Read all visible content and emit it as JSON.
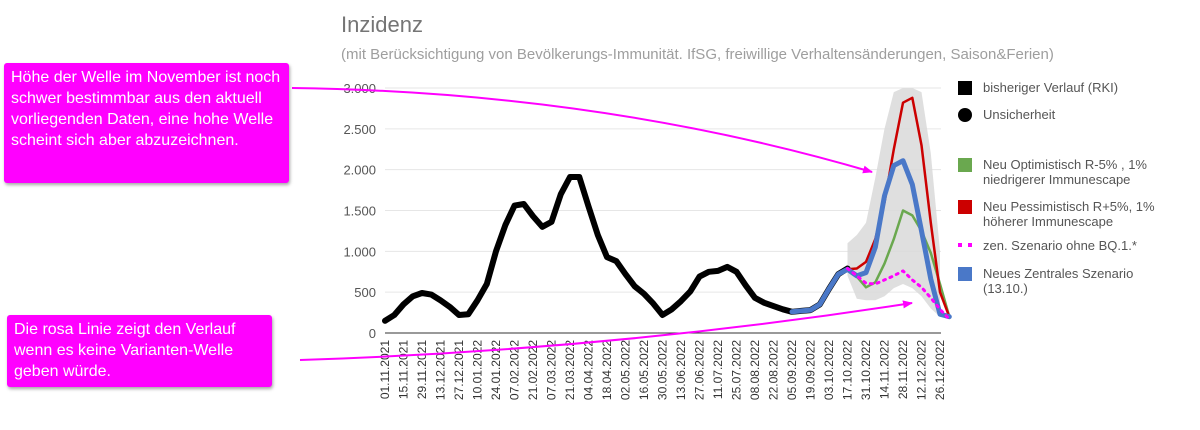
{
  "title": "Inzidenz",
  "subtitle": "(mit Berücksichtigung von Bevölkerungs-Immunität. IfSG, freiwillige Verhaltensänderungen, Saison&Ferien)",
  "callouts": {
    "top": "Höhe der Welle im November ist noch schwer bestimmbar aus den aktuell vorliegenden Daten, eine hohe Welle scheint sich aber abzuzeichnen.",
    "bottom": "Die rosa Linie zeigt den Verlauf wenn es keine Varianten-Welle geben würde."
  },
  "colors": {
    "callout": "#ff00ff",
    "historical": "#000000",
    "optimistic": "#6aa84f",
    "pessimistic": "#cc0000",
    "no_bq1": "#ff00ff",
    "central": "#4a78c8",
    "uncertainty": "#d9d9d9",
    "grid": "#e6e6e6"
  },
  "legend": [
    {
      "label": "bisheriger Verlauf (RKI)",
      "symbol": "square",
      "color": "#000000"
    },
    {
      "label": "Unsicherheit",
      "symbol": "circle",
      "color": "#000000"
    },
    {
      "label": "Neu Optimistisch R-5% , 1% niedrigerer Immunescape",
      "symbol": "square",
      "color": "#6aa84f"
    },
    {
      "label": "Neu Pessimistisch R+5%, 1% höherer Immunescape",
      "symbol": "square",
      "color": "#cc0000"
    },
    {
      "label": "zen. Szenario ohne BQ.1.*",
      "symbol": "dots",
      "color": "#ff00ff"
    },
    {
      "label": "Neues Zentrales Szenario (13.10.)",
      "symbol": "square",
      "color": "#4a78c8"
    }
  ],
  "chart_data": {
    "type": "line",
    "title": "Inzidenz",
    "subtitle": "(mit Berücksichtigung von Bevölkerungs-Immunität. IfSG, freiwillige Verhaltensänderungen, Saison&Ferien)",
    "ylim": [
      0,
      3000
    ],
    "yticks": [
      0,
      500,
      1000,
      1500,
      2000,
      2500,
      3000
    ],
    "ytick_labels": [
      "0",
      "500",
      "1.000",
      "1.500",
      "2.000",
      "2.500",
      "3.000"
    ],
    "grid": true,
    "legend_position": "right",
    "x_tick_labels": [
      "01.11.2021",
      "15.11.2021",
      "29.11.2021",
      "13.12.2021",
      "27.12.2021",
      "10.01.2022",
      "24.01.2022",
      "07.02.2022",
      "21.02.2022",
      "07.03.2022",
      "21.03.2022",
      "04.04.2022",
      "18.04.2022",
      "02.05.2022",
      "16.05.2022",
      "30.05.2022",
      "13.06.2022",
      "27.06.2022",
      "11.07.2022",
      "25.07.2022",
      "08.08.2022",
      "22.08.2022",
      "05.09.2022",
      "19.09.2022",
      "03.10.2022",
      "17.10.2022",
      "31.10.2022",
      "14.11.2022",
      "28.11.2022",
      "12.12.2022",
      "26.12.2022"
    ],
    "series": [
      {
        "name": "bisheriger Verlauf (RKI)",
        "color": "#000000",
        "style": "solid",
        "points": [
          [
            "01.11.2021",
            150
          ],
          [
            "08.11.2021",
            220
          ],
          [
            "15.11.2021",
            350
          ],
          [
            "22.11.2021",
            450
          ],
          [
            "29.11.2021",
            490
          ],
          [
            "06.12.2021",
            470
          ],
          [
            "13.12.2021",
            400
          ],
          [
            "20.12.2021",
            320
          ],
          [
            "27.12.2021",
            220
          ],
          [
            "03.01.2022",
            230
          ],
          [
            "10.01.2022",
            400
          ],
          [
            "17.01.2022",
            600
          ],
          [
            "24.01.2022",
            1000
          ],
          [
            "31.01.2022",
            1320
          ],
          [
            "07.02.2022",
            1560
          ],
          [
            "14.02.2022",
            1580
          ],
          [
            "21.02.2022",
            1430
          ],
          [
            "28.02.2022",
            1300
          ],
          [
            "07.03.2022",
            1360
          ],
          [
            "14.03.2022",
            1700
          ],
          [
            "21.03.2022",
            1910
          ],
          [
            "28.03.2022",
            1910
          ],
          [
            "04.04.2022",
            1550
          ],
          [
            "11.04.2022",
            1200
          ],
          [
            "18.04.2022",
            930
          ],
          [
            "25.04.2022",
            880
          ],
          [
            "02.05.2022",
            720
          ],
          [
            "09.05.2022",
            570
          ],
          [
            "16.05.2022",
            480
          ],
          [
            "23.05.2022",
            360
          ],
          [
            "30.05.2022",
            220
          ],
          [
            "06.06.2022",
            290
          ],
          [
            "13.06.2022",
            390
          ],
          [
            "20.06.2022",
            510
          ],
          [
            "27.06.2022",
            690
          ],
          [
            "04.07.2022",
            750
          ],
          [
            "11.07.2022",
            760
          ],
          [
            "18.07.2022",
            810
          ],
          [
            "25.07.2022",
            750
          ],
          [
            "01.08.2022",
            580
          ],
          [
            "08.08.2022",
            430
          ],
          [
            "15.08.2022",
            370
          ],
          [
            "22.08.2022",
            330
          ],
          [
            "29.08.2022",
            290
          ],
          [
            "05.09.2022",
            260
          ],
          [
            "12.09.2022",
            270
          ],
          [
            "19.09.2022",
            280
          ],
          [
            "26.09.2022",
            350
          ],
          [
            "03.10.2022",
            540
          ],
          [
            "10.10.2022",
            720
          ],
          [
            "17.10.2022",
            790
          ]
        ]
      },
      {
        "name": "Neu Optimistisch R-5% , 1% niedrigerer Immunescape",
        "color": "#6aa84f",
        "style": "solid",
        "points": [
          [
            "17.10.2022",
            780
          ],
          [
            "24.10.2022",
            690
          ],
          [
            "31.10.2022",
            560
          ],
          [
            "07.11.2022",
            620
          ],
          [
            "14.11.2022",
            850
          ],
          [
            "21.11.2022",
            1150
          ],
          [
            "28.11.2022",
            1500
          ],
          [
            "05.12.2022",
            1440
          ],
          [
            "12.12.2022",
            1250
          ],
          [
            "19.12.2022",
            980
          ],
          [
            "26.12.2022",
            600
          ],
          [
            "02.01.2023",
            200
          ]
        ]
      },
      {
        "name": "Neu Pessimistisch R+5%, 1% höherer Immunescape",
        "color": "#cc0000",
        "style": "solid",
        "points": [
          [
            "17.10.2022",
            780
          ],
          [
            "24.10.2022",
            790
          ],
          [
            "31.10.2022",
            870
          ],
          [
            "07.11.2022",
            1150
          ],
          [
            "14.11.2022",
            1600
          ],
          [
            "21.11.2022",
            2250
          ],
          [
            "28.11.2022",
            2820
          ],
          [
            "05.12.2022",
            2880
          ],
          [
            "12.12.2022",
            2300
          ],
          [
            "19.12.2022",
            1350
          ],
          [
            "26.12.2022",
            500
          ],
          [
            "02.01.2023",
            200
          ]
        ]
      },
      {
        "name": "zen. Szenario ohne BQ.1.*",
        "color": "#ff00ff",
        "style": "dotted",
        "points": [
          [
            "17.10.2022",
            790
          ],
          [
            "24.10.2022",
            700
          ],
          [
            "31.10.2022",
            610
          ],
          [
            "07.11.2022",
            600
          ],
          [
            "14.11.2022",
            650
          ],
          [
            "21.11.2022",
            700
          ],
          [
            "28.11.2022",
            760
          ],
          [
            "05.12.2022",
            650
          ],
          [
            "12.12.2022",
            560
          ],
          [
            "19.12.2022",
            430
          ],
          [
            "26.12.2022",
            290
          ],
          [
            "02.01.2023",
            170
          ]
        ]
      },
      {
        "name": "Neues Zentrales Szenario (13.10.)",
        "color": "#4a78c8",
        "style": "solid",
        "points": [
          [
            "05.09.2022",
            260
          ],
          [
            "12.09.2022",
            270
          ],
          [
            "19.09.2022",
            280
          ],
          [
            "26.09.2022",
            350
          ],
          [
            "03.10.2022",
            540
          ],
          [
            "10.10.2022",
            720
          ],
          [
            "17.10.2022",
            780
          ],
          [
            "24.10.2022",
            700
          ],
          [
            "31.10.2022",
            740
          ],
          [
            "07.11.2022",
            1050
          ],
          [
            "14.11.2022",
            1680
          ],
          [
            "21.11.2022",
            2050
          ],
          [
            "28.11.2022",
            2110
          ],
          [
            "05.12.2022",
            1820
          ],
          [
            "12.12.2022",
            1250
          ],
          [
            "19.12.2022",
            660
          ],
          [
            "26.12.2022",
            230
          ],
          [
            "02.01.2023",
            200
          ]
        ]
      }
    ],
    "uncertainty_band": {
      "name": "Unsicherheit",
      "color": "#d9d9d9",
      "points": [
        [
          "17.10.2022",
          1100,
          700
        ],
        [
          "24.10.2022",
          1200,
          420
        ],
        [
          "31.10.2022",
          1350,
          400
        ],
        [
          "07.11.2022",
          1900,
          400
        ],
        [
          "14.11.2022",
          2500,
          450
        ],
        [
          "21.11.2022",
          2950,
          550
        ],
        [
          "28.11.2022",
          3000,
          600
        ],
        [
          "05.12.2022",
          3000,
          550
        ],
        [
          "12.12.2022",
          2950,
          450
        ],
        [
          "19.12.2022",
          2200,
          300
        ],
        [
          "26.12.2022",
          1000,
          200
        ]
      ]
    }
  }
}
